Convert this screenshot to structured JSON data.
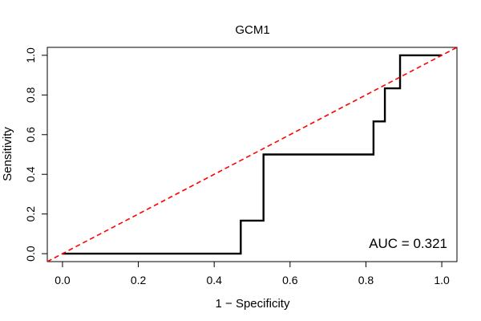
{
  "chart_data": {
    "type": "line",
    "title": "GCM1",
    "xlabel": "1 − Specificity",
    "ylabel": "Sensitivity",
    "xlim": [
      -0.04,
      1.04
    ],
    "ylim": [
      -0.04,
      1.04
    ],
    "x_ticks": [
      "0.0",
      "0.2",
      "0.4",
      "0.6",
      "0.8",
      "1.0"
    ],
    "y_ticks": [
      "0.0",
      "0.2",
      "0.4",
      "0.6",
      "0.8",
      "1.0"
    ],
    "grid": false,
    "series": [
      {
        "style": "solid",
        "color": "#000000",
        "x": [
          0.0,
          0.47,
          0.47,
          0.53,
          0.53,
          0.82,
          0.82,
          0.85,
          0.85,
          0.89,
          0.89,
          1.0
        ],
        "y": [
          0.0,
          0.0,
          0.1667,
          0.1667,
          0.5,
          0.5,
          0.6667,
          0.6667,
          0.8333,
          0.8333,
          1.0,
          1.0
        ]
      },
      {
        "style": "dashed",
        "color": "#ff0000",
        "x": [
          -0.04,
          1.04
        ],
        "y": [
          -0.04,
          1.04
        ]
      }
    ],
    "annotations": [
      {
        "text": "AUC = 0.321",
        "position": "bottom-right"
      }
    ]
  }
}
